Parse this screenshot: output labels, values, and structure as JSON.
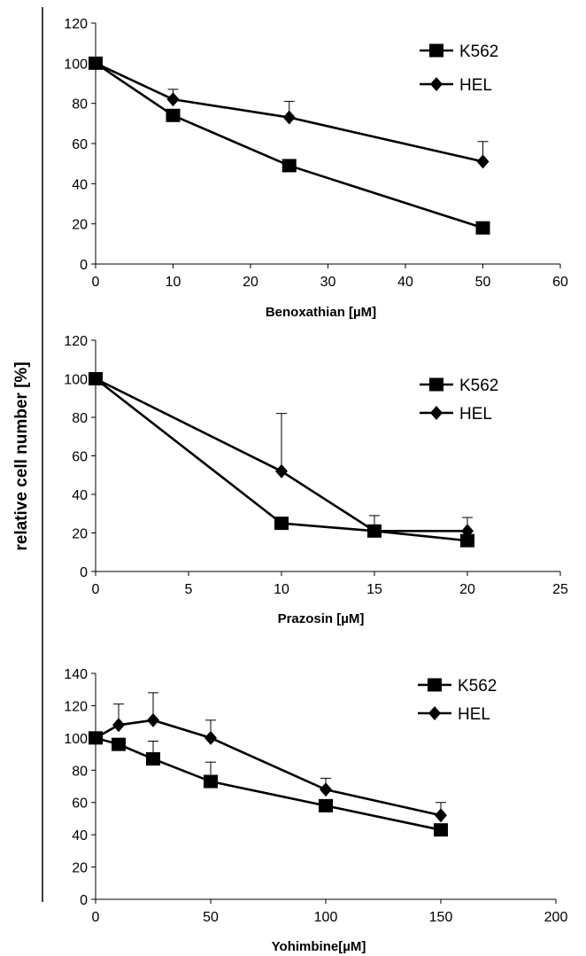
{
  "ylabel": "relative cell number [%]",
  "chart_data": [
    {
      "type": "line",
      "xlabel": "Benoxathian [µM]",
      "xlim": [
        0,
        60
      ],
      "ylim": [
        0,
        120
      ],
      "xticks": [
        0,
        10,
        20,
        30,
        40,
        50,
        60
      ],
      "yticks": [
        0,
        20,
        40,
        60,
        80,
        100,
        120
      ],
      "legend_position": "top-right",
      "series": [
        {
          "name": "K562",
          "marker": "square",
          "x": [
            0,
            10,
            25,
            50
          ],
          "y": [
            100,
            74,
            49,
            18
          ],
          "err": [
            0,
            0,
            0,
            0
          ]
        },
        {
          "name": "HEL",
          "marker": "diamond",
          "x": [
            0,
            10,
            25,
            50
          ],
          "y": [
            100,
            82,
            73,
            51
          ],
          "err": [
            0,
            5,
            8,
            10
          ]
        }
      ]
    },
    {
      "type": "line",
      "xlabel": "Prazosin [µM]",
      "xlim": [
        0,
        25
      ],
      "ylim": [
        0,
        120
      ],
      "xticks": [
        0,
        5,
        10,
        15,
        20,
        25
      ],
      "yticks": [
        0,
        20,
        40,
        60,
        80,
        100,
        120
      ],
      "legend_position": "top-right",
      "series": [
        {
          "name": "K562",
          "marker": "square",
          "x": [
            0,
            10,
            15,
            20
          ],
          "y": [
            100,
            25,
            21,
            16
          ],
          "err": [
            0,
            0,
            0,
            0
          ]
        },
        {
          "name": "HEL",
          "marker": "diamond",
          "x": [
            0,
            10,
            15,
            20
          ],
          "y": [
            100,
            52,
            21,
            21
          ],
          "err": [
            0,
            30,
            8,
            7
          ]
        }
      ]
    },
    {
      "type": "line",
      "xlabel": "Yohimbine[µM]",
      "xlim": [
        0,
        200
      ],
      "ylim": [
        0,
        140
      ],
      "xticks": [
        0,
        50,
        100,
        150,
        200
      ],
      "yticks": [
        0,
        20,
        40,
        60,
        80,
        100,
        120,
        140
      ],
      "legend_position": "top-right",
      "series": [
        {
          "name": "K562",
          "marker": "square",
          "x": [
            0,
            10,
            25,
            50,
            100,
            150
          ],
          "y": [
            100,
            96,
            87,
            73,
            58,
            43
          ],
          "err": [
            0,
            0,
            11,
            12,
            0,
            0
          ]
        },
        {
          "name": "HEL",
          "marker": "diamond",
          "x": [
            0,
            10,
            25,
            50,
            100,
            150
          ],
          "y": [
            100,
            108,
            111,
            100,
            68,
            52
          ],
          "err": [
            0,
            13,
            17,
            11,
            7,
            8
          ]
        }
      ]
    }
  ]
}
